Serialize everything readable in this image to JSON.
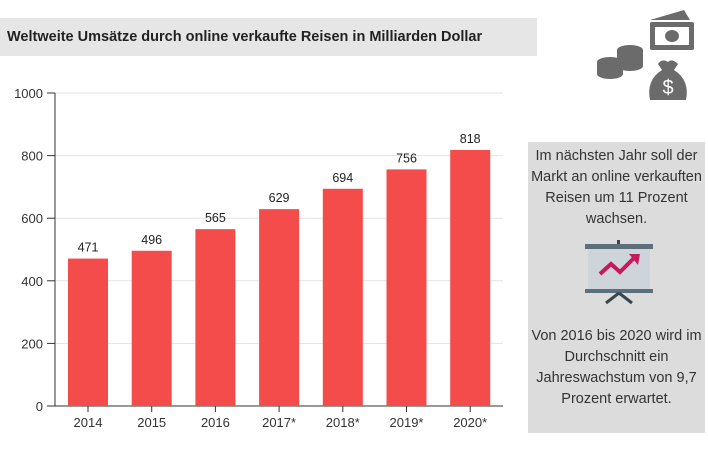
{
  "title": "Weltweite Umsätze durch online verkaufte Reisen in Milliarden Dollar",
  "side_panel": {
    "text1": "Im nächsten Jahr soll der Markt an online verkauften Reisen um 11 Prozent wachsen.",
    "text2": "Von 2016 bis 2020 wird im Durchschnitt ein Jahreswachstum von 9,7 Prozent erwartet."
  },
  "chart_data": {
    "type": "bar",
    "title": "Weltweite Umsätze durch online verkaufte Reisen in Milliarden Dollar",
    "categories": [
      "2014",
      "2015",
      "2016",
      "2017*",
      "2018*",
      "2019*",
      "2020*"
    ],
    "values": [
      471,
      496,
      565,
      629,
      694,
      756,
      818
    ],
    "xlabel": "",
    "ylabel": "",
    "ylim": [
      0,
      1000
    ],
    "yticks": [
      0,
      200,
      400,
      600,
      800,
      1000
    ],
    "grid": true,
    "bar_color": "#f44b4b"
  }
}
